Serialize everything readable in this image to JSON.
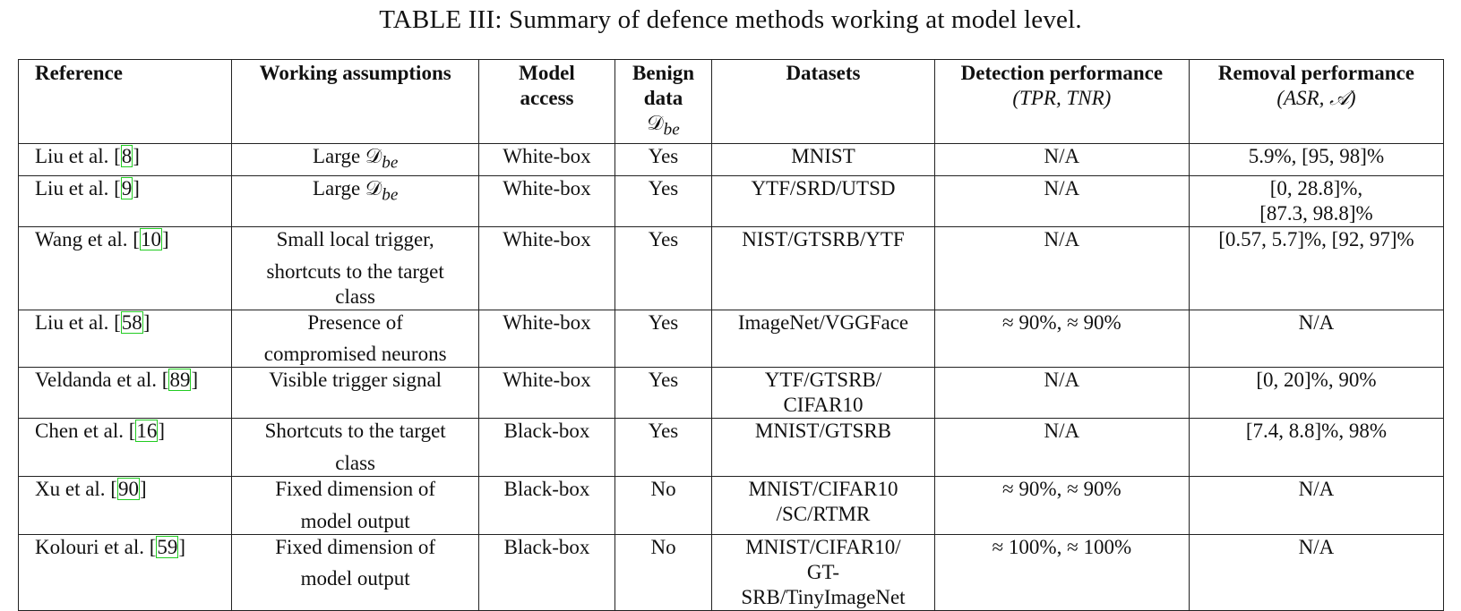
{
  "caption": "TABLE III: Summary of defence methods working at model level.",
  "headers": {
    "reference": "Reference",
    "assumptions": "Working assumptions",
    "access_1": "Model",
    "access_2": "access",
    "benign_1": "Benign",
    "benign_2": "data",
    "benign_3": "𝒟",
    "benign_3_sub": "be",
    "datasets": "Datasets",
    "detection": "Detection performance",
    "detection_sub": "(TPR, TNR)",
    "removal": "Removal performance",
    "removal_sub": "(ASR, 𝒜)"
  },
  "rows": [
    {
      "author": "Liu et al. [",
      "cite": "8",
      "close": "]",
      "assumption_1": "Large 𝒟",
      "assumption_sub": "be",
      "assumption_2": "",
      "assumption_3": "",
      "access": "White-box",
      "benign": "Yes",
      "datasets_1": "MNIST",
      "datasets_2": "",
      "datasets_3": "",
      "detection": "N/A",
      "removal_1": "5.9%, [95, 98]%",
      "removal_2": ""
    },
    {
      "author": "Liu et al. [",
      "cite": "9",
      "close": "]",
      "assumption_1": "Large 𝒟",
      "assumption_sub": "be",
      "assumption_2": "",
      "assumption_3": "",
      "access": "White-box",
      "benign": "Yes",
      "datasets_1": "YTF/SRD/UTSD",
      "datasets_2": "",
      "datasets_3": "",
      "detection": "N/A",
      "removal_1": "[0, 28.8]%,",
      "removal_2": "[87.3, 98.8]%"
    },
    {
      "author": "Wang et al. [",
      "cite": "10",
      "close": "]",
      "assumption_1": "Small local trigger,",
      "assumption_sub": "",
      "assumption_2": "shortcuts to the target",
      "assumption_3": "class",
      "access": "White-box",
      "benign": "Yes",
      "datasets_1": "NIST/GTSRB/YTF",
      "datasets_2": "",
      "datasets_3": "",
      "detection": "N/A",
      "removal_1": "[0.57, 5.7]%, [92, 97]%",
      "removal_2": ""
    },
    {
      "author": "Liu et al. [",
      "cite": "58",
      "close": "]",
      "assumption_1": "Presence of",
      "assumption_sub": "",
      "assumption_2": "compromised neurons",
      "assumption_3": "",
      "access": "White-box",
      "benign": "Yes",
      "datasets_1": "ImageNet/VGGFace",
      "datasets_2": "",
      "datasets_3": "",
      "detection": "≈ 90%, ≈ 90%",
      "removal_1": "N/A",
      "removal_2": ""
    },
    {
      "author": "Veldanda et al. [",
      "cite": "89",
      "close": "]",
      "assumption_1": "Visible trigger signal",
      "assumption_sub": "",
      "assumption_2": "",
      "assumption_3": "",
      "access": "White-box",
      "benign": "Yes",
      "datasets_1": "YTF/GTSRB/",
      "datasets_2": "CIFAR10",
      "datasets_3": "",
      "detection": "N/A",
      "removal_1": "[0, 20]%, 90%",
      "removal_2": ""
    },
    {
      "author": "Chen et al. [",
      "cite": "16",
      "close": "]",
      "assumption_1": "Shortcuts to the target",
      "assumption_sub": "",
      "assumption_2": "class",
      "assumption_3": "",
      "access": "Black-box",
      "benign": "Yes",
      "datasets_1": "MNIST/GTSRB",
      "datasets_2": "",
      "datasets_3": "",
      "detection": "N/A",
      "removal_1": "[7.4, 8.8]%, 98%",
      "removal_2": ""
    },
    {
      "author": "Xu et al. [",
      "cite": "90",
      "close": "]",
      "assumption_1": "Fixed dimension of",
      "assumption_sub": "",
      "assumption_2": "model output",
      "assumption_3": "",
      "access": "Black-box",
      "benign": "No",
      "datasets_1": "MNIST/CIFAR10",
      "datasets_2": "/SC/RTMR",
      "datasets_3": "",
      "detection": "≈ 90%, ≈ 90%",
      "removal_1": "N/A",
      "removal_2": ""
    },
    {
      "author": "Kolouri et al. [",
      "cite": "59",
      "close": "]",
      "assumption_1": "Fixed dimension of",
      "assumption_sub": "",
      "assumption_2": "model output",
      "assumption_3": "",
      "access": "Black-box",
      "benign": "No",
      "datasets_1": "MNIST/CIFAR10/",
      "datasets_2": "GT-",
      "datasets_3": "SRB/TinyImageNet",
      "detection": "≈ 100%, ≈ 100%",
      "removal_1": "N/A",
      "removal_2": ""
    }
  ]
}
